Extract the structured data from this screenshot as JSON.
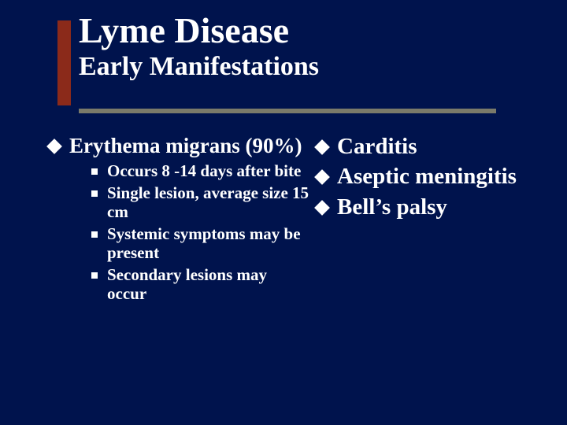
{
  "background_color": "#00134d",
  "text_color": "#ffffff",
  "accent_bar_color": "#8b2a1a",
  "underline_color": "#7a7a6a",
  "font_family": "Times New Roman",
  "title": {
    "main": "Lyme Disease",
    "subtitle": "Early Manifestations",
    "main_fontsize": 46,
    "sub_fontsize": 34,
    "weight": "bold"
  },
  "left_column": {
    "bullet_style": "diamond",
    "bullet_color": "#ffffff",
    "items": [
      {
        "text": "Erythema migrans (90%)",
        "fontsize": 27,
        "sub_bullet_style": "square",
        "subitems": [
          {
            "text": "Occurs 8 -14 days after bite"
          },
          {
            "text": "Single lesion, average size 15 cm"
          },
          {
            "text": "Systemic symptoms may be present"
          },
          {
            "text": "Secondary lesions may occur"
          }
        ],
        "sub_fontsize": 21
      }
    ]
  },
  "right_column": {
    "bullet_style": "diamond",
    "bullet_color": "#ffffff",
    "fontsize": 29,
    "items": [
      {
        "text": "Carditis"
      },
      {
        "text": "Aseptic meningitis"
      },
      {
        "text": "Bell’s palsy"
      }
    ]
  }
}
